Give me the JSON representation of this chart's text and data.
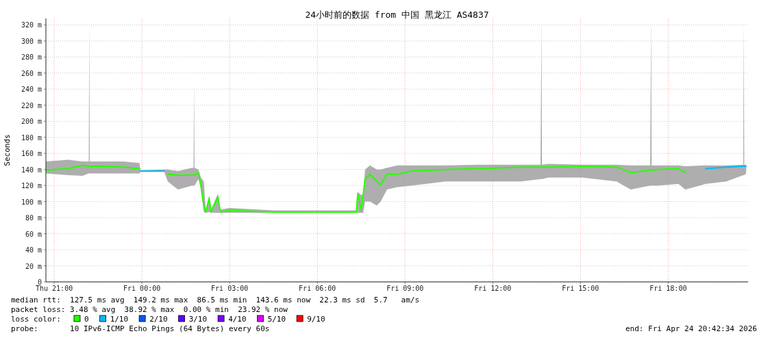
{
  "chart_data": {
    "type": "line",
    "title": "24小时前的数据 from 中国 黑龙江 AS4837",
    "ylabel": "Seconds",
    "legend_title": "loss color:",
    "legend": "bottom",
    "grid": true,
    "xlim": [
      "2026-04-23T20:43",
      "2026-04-24T20:44"
    ],
    "ylim": [
      0,
      328
    ],
    "xticks": [
      {
        "value": "2026-04-23T21:00",
        "label": "Thu 21:00"
      },
      {
        "value": "2026-04-24T00:00",
        "label": "Fri 00:00"
      },
      {
        "value": "2026-04-24T03:00",
        "label": "Fri 03:00"
      },
      {
        "value": "2026-04-24T06:00",
        "label": "Fri 06:00"
      },
      {
        "value": "2026-04-24T09:00",
        "label": "Fri 09:00"
      },
      {
        "value": "2026-04-24T12:00",
        "label": "Fri 12:00"
      },
      {
        "value": "2026-04-24T15:00",
        "label": "Fri 15:00"
      },
      {
        "value": "2026-04-24T18:00",
        "label": "Fri 18:00"
      }
    ],
    "yticks": [
      0,
      {
        "value": 20,
        "label": "20 m"
      },
      {
        "value": 40,
        "label": "40 m"
      },
      {
        "value": 60,
        "label": "60 m"
      },
      {
        "value": 80,
        "label": "80 m"
      },
      {
        "value": 100,
        "label": "100 m"
      },
      {
        "value": 120,
        "label": "120 m"
      },
      {
        "value": 140,
        "label": "140 m"
      },
      {
        "value": 160,
        "label": "160 m"
      },
      {
        "value": 180,
        "label": "180 m"
      },
      {
        "value": 200,
        "label": "200 m"
      },
      {
        "value": 220,
        "label": "220 m"
      },
      {
        "value": 240,
        "label": "240 m"
      },
      {
        "value": 260,
        "label": "260 m"
      },
      {
        "value": 280,
        "label": "280 m"
      },
      {
        "value": 300,
        "label": "300 m"
      },
      {
        "value": 320,
        "label": "320 m"
      }
    ],
    "series": [
      {
        "name": "0",
        "color": "#26ff00",
        "x": [
          "2026-04-23T20:43",
          "2026-04-23T21:29",
          "2026-04-23T21:58",
          "2026-04-23T22:11",
          "2026-04-23T22:12",
          "2026-04-23T22:13",
          "2026-04-23T22:40",
          "2026-04-23T23:22",
          "2026-04-23T23:55",
          "2026-04-23T23:57",
          "2026-04-24T00:46",
          "2026-04-24T00:53",
          "2026-04-24T01:14",
          "2026-04-24T01:43",
          "2026-04-24T01:46",
          "2026-04-24T01:47",
          "2026-04-24T01:48",
          "2026-04-24T01:56",
          "2026-04-24T02:01",
          "2026-04-24T02:07",
          "2026-04-24T02:11",
          "2026-04-24T02:18",
          "2026-04-24T02:22",
          "2026-04-24T02:36",
          "2026-04-24T02:41",
          "2026-04-24T03:00",
          "2026-04-24T04:31",
          "2026-04-24T07:20",
          "2026-04-24T07:23",
          "2026-04-24T07:30",
          "2026-04-24T07:34",
          "2026-04-24T07:38",
          "2026-04-24T07:48",
          "2026-04-24T08:02",
          "2026-04-24T08:10",
          "2026-04-24T08:23",
          "2026-04-24T08:44",
          "2026-04-24T09:13",
          "2026-04-24T10:23",
          "2026-04-24T11:33",
          "2026-04-24T12:58",
          "2026-04-24T13:38",
          "2026-04-24T13:40",
          "2026-04-24T13:41",
          "2026-04-24T13:54",
          "2026-04-24T15:04",
          "2026-04-24T16:14",
          "2026-04-24T16:43",
          "2026-04-24T17:23",
          "2026-04-24T17:25",
          "2026-04-24T17:26",
          "2026-04-24T17:39",
          "2026-04-24T18:21",
          "2026-04-24T18:35",
          "2026-04-24T19:17",
          "2026-04-24T19:59",
          "2026-04-24T20:34",
          "2026-04-24T20:35",
          "2026-04-24T20:36",
          "2026-04-24T20:40"
        ],
        "values": [
          139,
          141,
          145,
          144,
          144,
          144,
          144,
          143,
          141,
          null,
          null,
          134,
          133,
          133,
          133,
          133,
          133,
          136,
          121,
          95,
          87,
          104,
          87,
          106,
          87,
          89,
          87,
          87,
          110,
          89,
          108,
          128,
          134,
          125,
          121,
          134,
          134,
          138,
          140,
          141,
          143,
          143,
          143,
          143,
          143,
          144,
          143,
          136,
          139,
          139,
          139,
          140,
          141,
          136,
          null,
          null,
          null,
          null,
          null,
          null
        ],
        "lower": [
          135,
          133,
          132,
          135,
          135,
          135,
          135,
          135,
          135,
          137,
          137,
          125,
          115,
          120,
          120,
          120,
          120,
          128,
          115,
          87,
          86,
          87,
          86,
          86,
          86,
          86,
          86,
          86,
          86,
          86,
          86,
          100,
          100,
          95,
          100,
          115,
          118,
          120,
          125,
          125,
          125,
          128,
          128,
          128,
          130,
          130,
          125,
          115,
          120,
          120,
          120,
          120,
          122,
          115,
          122,
          125,
          133,
          133,
          133,
          135
        ],
        "upper": [
          150,
          152,
          150,
          150,
          327,
          150,
          150,
          150,
          148,
          139,
          140,
          140,
          138,
          142,
          142,
          250,
          142,
          140,
          130,
          125,
          90,
          108,
          90,
          110,
          90,
          92,
          89,
          89,
          112,
          108,
          110,
          140,
          145,
          140,
          140,
          142,
          145,
          145,
          145,
          146,
          146,
          146,
          327,
          146,
          147,
          146,
          146,
          145,
          145,
          327,
          145,
          145,
          145,
          144,
          145,
          145,
          146,
          327,
          146,
          146
        ]
      },
      {
        "name": "1/10",
        "color": "#00b8ff",
        "x": [
          "2026-04-23T23:57",
          "2026-04-24T00:46",
          "2026-04-24T19:17",
          "2026-04-24T19:59",
          "2026-04-24T20:34",
          "2026-04-24T20:35",
          "2026-04-24T20:36",
          "2026-04-24T20:40"
        ],
        "values": [
          138,
          138,
          141,
          143,
          144,
          144,
          144,
          144
        ]
      },
      {
        "name": "2/10",
        "color": "#0059ff"
      },
      {
        "name": "3/10",
        "color": "#5e00ff"
      },
      {
        "name": "4/10",
        "color": "#7e00ff"
      },
      {
        "name": "5/10",
        "color": "#dd00ff"
      },
      {
        "name": "9/10",
        "color": "#ff0000"
      }
    ],
    "annotations": [
      "median rtt:  127.5 ms avg  149.2 ms max  86.5 ms min  143.6 ms now  22.3 ms sd  5.7   am/s",
      "packet loss: 3.48 % avg  38.92 % max  0.00 % min  23.92 % now",
      "probe:       10 IPv6-ICMP Echo Pings (64 Bytes) every 60s",
      "end: Fri Apr 24 20:42:34 2026"
    ]
  }
}
